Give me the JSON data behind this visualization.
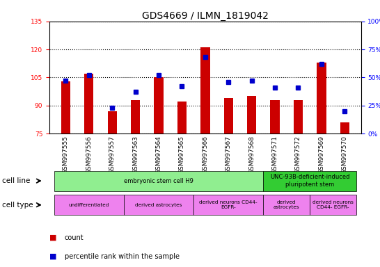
{
  "title": "GDS4669 / ILMN_1819042",
  "samples": [
    "GSM997555",
    "GSM997556",
    "GSM997557",
    "GSM997563",
    "GSM997564",
    "GSM997565",
    "GSM997566",
    "GSM997567",
    "GSM997568",
    "GSM997571",
    "GSM997572",
    "GSM997569",
    "GSM997570"
  ],
  "count_values": [
    103,
    107,
    87,
    93,
    105,
    92,
    121,
    94,
    95,
    93,
    93,
    113,
    81
  ],
  "percentile_values": [
    47,
    52,
    23,
    37,
    52,
    42,
    68,
    46,
    47,
    41,
    41,
    62,
    20
  ],
  "ylim_left": [
    75,
    135
  ],
  "ylim_right": [
    0,
    100
  ],
  "yticks_left": [
    75,
    90,
    105,
    120,
    135
  ],
  "yticks_right": [
    0,
    25,
    50,
    75,
    100
  ],
  "bar_color": "#cc0000",
  "dot_color": "#0000cc",
  "background_color": "#ffffff",
  "grid_color": "#000000",
  "cell_line_groups": [
    {
      "label": "embryonic stem cell H9",
      "start": 0,
      "end": 8,
      "color": "#90ee90"
    },
    {
      "label": "UNC-93B-deficient-induced\npluripotent stem",
      "start": 9,
      "end": 12,
      "color": "#33cc33"
    }
  ],
  "cell_type_groups": [
    {
      "label": "undifferentiated",
      "start": 0,
      "end": 2,
      "color": "#ee82ee"
    },
    {
      "label": "derived astrocytes",
      "start": 3,
      "end": 5,
      "color": "#ee82ee"
    },
    {
      "label": "derived neurons CD44-\nEGFR-",
      "start": 6,
      "end": 8,
      "color": "#ee82ee"
    },
    {
      "label": "derived\nastrocytes",
      "start": 9,
      "end": 10,
      "color": "#ee82ee"
    },
    {
      "label": "derived neurons\nCD44- EGFR-",
      "start": 11,
      "end": 12,
      "color": "#ee82ee"
    }
  ],
  "legend_count_color": "#cc0000",
  "legend_pct_color": "#0000cc",
  "title_fontsize": 10,
  "tick_fontsize": 6.5,
  "label_fontsize": 7.5
}
